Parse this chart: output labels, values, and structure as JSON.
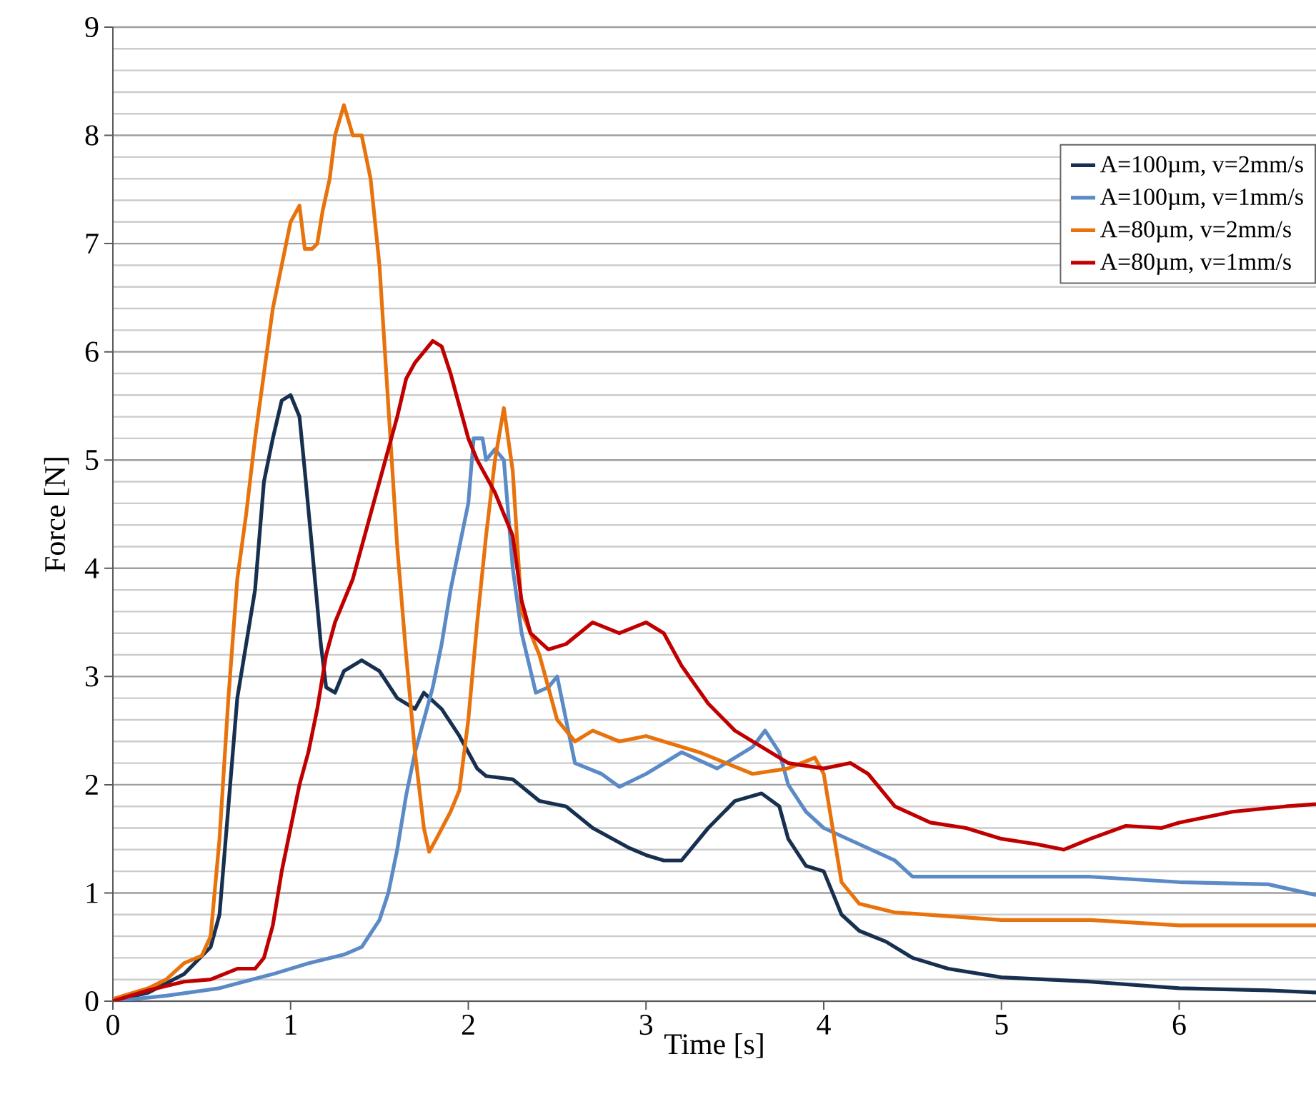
{
  "chart_data": {
    "type": "line",
    "xlabel": "Time [s]",
    "ylabel": "Force [N]",
    "xlim": [
      0,
      6.77
    ],
    "ylim": [
      0,
      9
    ],
    "xticks": [
      0,
      1,
      2,
      3,
      4,
      5,
      6
    ],
    "yticks": [
      0,
      1,
      2,
      3,
      4,
      5,
      6,
      7,
      8,
      9
    ],
    "grid": "y",
    "legend": "top right",
    "marker": "none",
    "line_style": "solid",
    "series": [
      {
        "name": "A=100µm, v=2mm/s",
        "color": "#17304f",
        "x": [
          0,
          0.2,
          0.4,
          0.55,
          0.6,
          0.65,
          0.7,
          0.75,
          0.8,
          0.85,
          0.9,
          0.95,
          1.0,
          1.05,
          1.08,
          1.12,
          1.17,
          1.2,
          1.25,
          1.3,
          1.4,
          1.5,
          1.6,
          1.7,
          1.75,
          1.85,
          1.95,
          2.05,
          2.1,
          2.25,
          2.4,
          2.55,
          2.7,
          2.9,
          3.0,
          3.1,
          3.2,
          3.35,
          3.5,
          3.65,
          3.75,
          3.8,
          3.9,
          4.0,
          4.1,
          4.2,
          4.35,
          4.5,
          4.7,
          5.0,
          5.5,
          6.0,
          6.5,
          6.77
        ],
        "values": [
          0,
          0.08,
          0.25,
          0.5,
          0.8,
          1.8,
          2.8,
          3.3,
          3.8,
          4.8,
          5.2,
          5.55,
          5.6,
          5.4,
          4.9,
          4.2,
          3.3,
          2.9,
          2.85,
          3.05,
          3.15,
          3.05,
          2.8,
          2.7,
          2.85,
          2.7,
          2.45,
          2.15,
          2.08,
          2.05,
          1.85,
          1.8,
          1.6,
          1.42,
          1.35,
          1.3,
          1.3,
          1.6,
          1.85,
          1.92,
          1.8,
          1.5,
          1.25,
          1.2,
          0.8,
          0.65,
          0.55,
          0.4,
          0.3,
          0.22,
          0.18,
          0.12,
          0.1,
          0.08
        ]
      },
      {
        "name": "A=100µm, v=1mm/s",
        "color": "#5b8ac6",
        "x": [
          0,
          0.3,
          0.6,
          0.9,
          1.1,
          1.3,
          1.4,
          1.5,
          1.55,
          1.6,
          1.65,
          1.7,
          1.75,
          1.8,
          1.85,
          1.9,
          1.95,
          2.0,
          2.03,
          2.08,
          2.1,
          2.15,
          2.2,
          2.25,
          2.3,
          2.38,
          2.45,
          2.5,
          2.55,
          2.6,
          2.75,
          2.85,
          3.0,
          3.2,
          3.4,
          3.5,
          3.6,
          3.67,
          3.75,
          3.8,
          3.9,
          4.0,
          4.2,
          4.4,
          4.5,
          5.0,
          5.5,
          6.0,
          6.5,
          6.77
        ],
        "values": [
          0,
          0.05,
          0.12,
          0.25,
          0.35,
          0.43,
          0.5,
          0.75,
          1.0,
          1.4,
          1.9,
          2.3,
          2.6,
          2.9,
          3.3,
          3.8,
          4.2,
          4.6,
          5.2,
          5.2,
          5.0,
          5.1,
          5.0,
          4.0,
          3.4,
          2.85,
          2.9,
          3.0,
          2.6,
          2.2,
          2.1,
          1.98,
          2.1,
          2.3,
          2.15,
          2.25,
          2.35,
          2.5,
          2.3,
          2.0,
          1.75,
          1.6,
          1.45,
          1.3,
          1.15,
          1.15,
          1.15,
          1.1,
          1.08,
          0.98
        ]
      },
      {
        "name": "A=80µm, v=2mm/s",
        "color": "#e8720c",
        "x": [
          0,
          0.1,
          0.2,
          0.3,
          0.4,
          0.5,
          0.55,
          0.6,
          0.65,
          0.7,
          0.75,
          0.8,
          0.85,
          0.9,
          0.95,
          1.0,
          1.05,
          1.08,
          1.12,
          1.15,
          1.18,
          1.22,
          1.25,
          1.3,
          1.35,
          1.4,
          1.45,
          1.5,
          1.55,
          1.6,
          1.65,
          1.7,
          1.75,
          1.78,
          1.82,
          1.9,
          1.95,
          2.0,
          2.05,
          2.1,
          2.15,
          2.2,
          2.25,
          2.3,
          2.4,
          2.5,
          2.6,
          2.7,
          2.85,
          3.0,
          3.1,
          3.3,
          3.45,
          3.6,
          3.8,
          3.95,
          4.0,
          4.05,
          4.1,
          4.2,
          4.4,
          5.0,
          5.5,
          6.0,
          6.5,
          6.77
        ],
        "values": [
          0.02,
          0.07,
          0.12,
          0.2,
          0.35,
          0.42,
          0.6,
          1.5,
          2.8,
          3.9,
          4.5,
          5.2,
          5.8,
          6.4,
          6.8,
          7.2,
          7.35,
          6.95,
          6.95,
          7.0,
          7.3,
          7.6,
          8.0,
          8.28,
          8.0,
          8.0,
          7.6,
          6.8,
          5.5,
          4.2,
          3.2,
          2.3,
          1.6,
          1.38,
          1.5,
          1.75,
          1.95,
          2.6,
          3.5,
          4.3,
          5.0,
          5.48,
          4.9,
          3.6,
          3.2,
          2.6,
          2.4,
          2.5,
          2.4,
          2.45,
          2.4,
          2.3,
          2.2,
          2.1,
          2.15,
          2.25,
          2.1,
          1.6,
          1.1,
          0.9,
          0.82,
          0.75,
          0.75,
          0.7,
          0.7,
          0.7
        ]
      },
      {
        "name": "A=80µm, v=1mm/s",
        "color": "#c00000",
        "x": [
          0,
          0.2,
          0.4,
          0.55,
          0.7,
          0.8,
          0.85,
          0.9,
          0.95,
          1.0,
          1.05,
          1.1,
          1.15,
          1.2,
          1.25,
          1.3,
          1.35,
          1.4,
          1.5,
          1.6,
          1.65,
          1.7,
          1.8,
          1.85,
          1.9,
          1.95,
          2.0,
          2.05,
          2.15,
          2.25,
          2.3,
          2.35,
          2.45,
          2.55,
          2.7,
          2.85,
          3.0,
          3.1,
          3.2,
          3.35,
          3.5,
          3.65,
          3.8,
          4.0,
          4.15,
          4.25,
          4.4,
          4.6,
          4.8,
          5.0,
          5.2,
          5.35,
          5.5,
          5.7,
          5.9,
          6.0,
          6.3,
          6.6,
          6.77
        ],
        "values": [
          0,
          0.1,
          0.18,
          0.2,
          0.3,
          0.3,
          0.4,
          0.7,
          1.2,
          1.6,
          2.0,
          2.3,
          2.7,
          3.2,
          3.5,
          3.7,
          3.9,
          4.2,
          4.8,
          5.4,
          5.75,
          5.9,
          6.1,
          6.05,
          5.8,
          5.5,
          5.2,
          5.0,
          4.7,
          4.3,
          3.7,
          3.4,
          3.25,
          3.3,
          3.5,
          3.4,
          3.5,
          3.4,
          3.1,
          2.75,
          2.5,
          2.35,
          2.2,
          2.15,
          2.2,
          2.1,
          1.8,
          1.65,
          1.6,
          1.5,
          1.45,
          1.4,
          1.5,
          1.62,
          1.6,
          1.65,
          1.75,
          1.8,
          1.82
        ]
      }
    ]
  }
}
